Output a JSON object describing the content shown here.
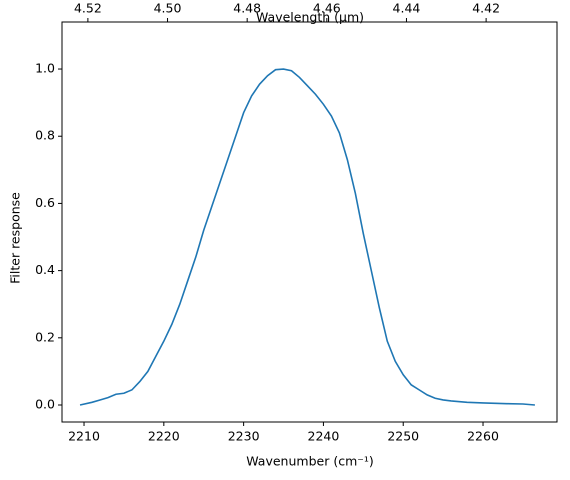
{
  "chart_data": {
    "type": "line",
    "xlabel": "Wavenumber (cm⁻¹)",
    "ylabel": "Filter response",
    "x2label": "Wavelength (μm)",
    "x": [
      2209.5,
      2211,
      2212,
      2213,
      2214,
      2215,
      2216,
      2217,
      2218,
      2219,
      2220,
      2221,
      2222,
      2223,
      2224,
      2225,
      2226,
      2227,
      2228,
      2229,
      2230,
      2231,
      2232,
      2233,
      2234,
      2235,
      2236,
      2237,
      2238,
      2239,
      2240,
      2241,
      2242,
      2243,
      2244,
      2245,
      2246,
      2247,
      2248,
      2249,
      2250,
      2251,
      2252,
      2253,
      2254,
      2255,
      2256,
      2258,
      2260,
      2263,
      2265,
      2266.5
    ],
    "series": [
      {
        "color": "#1f77b4",
        "values": [
          0.0,
          0.008,
          0.015,
          0.022,
          0.032,
          0.035,
          0.045,
          0.07,
          0.1,
          0.145,
          0.19,
          0.24,
          0.3,
          0.37,
          0.44,
          0.52,
          0.59,
          0.66,
          0.73,
          0.8,
          0.87,
          0.92,
          0.955,
          0.98,
          0.998,
          1.0,
          0.995,
          0.975,
          0.95,
          0.925,
          0.895,
          0.86,
          0.81,
          0.73,
          0.63,
          0.51,
          0.4,
          0.29,
          0.19,
          0.13,
          0.09,
          0.06,
          0.045,
          0.03,
          0.02,
          0.015,
          0.012,
          0.008,
          0.006,
          0.004,
          0.003,
          0.0
        ]
      }
    ],
    "xlim": [
      2207.24,
      2269.27
    ],
    "xticks": [
      2210,
      2220,
      2230,
      2240,
      2250,
      2260
    ],
    "ylim": [
      -0.0506,
      1.14
    ],
    "yticks": [
      {
        "value": 0,
        "label": "0.0"
      },
      0.2,
      0.4,
      0.6,
      0.8,
      {
        "value": 1,
        "label": "1.0"
      }
    ],
    "x2lim": [
      4.5265,
      4.4022
    ],
    "x2ticks": [
      4.52,
      {
        "value": 4.5,
        "label": "4.50"
      },
      4.48,
      4.46,
      4.44,
      4.42
    ]
  }
}
